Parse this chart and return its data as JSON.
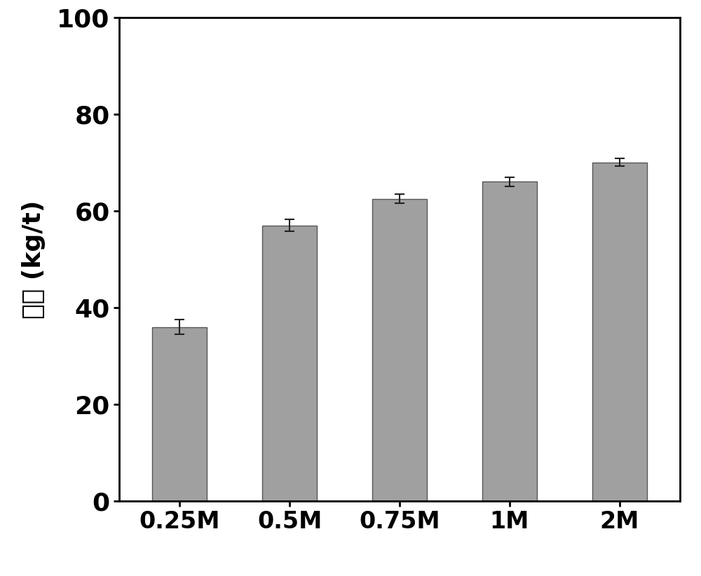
{
  "categories": [
    "0.25M",
    "0.5M",
    "0.75M",
    "1M",
    "2M"
  ],
  "values": [
    36.0,
    57.0,
    62.5,
    66.0,
    70.0
  ],
  "errors": [
    1.5,
    1.2,
    1.0,
    1.0,
    0.8
  ],
  "bar_color": "#a0a0a0",
  "bar_edgecolor": "#555555",
  "ylabel": "产率 (kg/t)",
  "ylim": [
    0,
    100
  ],
  "yticks": [
    0,
    20,
    40,
    60,
    80,
    100
  ],
  "background_color": "#ffffff",
  "plot_bg_color": "#ffffff",
  "bar_width": 0.5,
  "ylabel_fontsize": 26,
  "tick_fontsize": 26,
  "xlabel_fontsize": 24,
  "spine_linewidth": 2.0,
  "errorbar_capsize": 5,
  "errorbar_linewidth": 1.5,
  "errorbar_color": "#222222"
}
